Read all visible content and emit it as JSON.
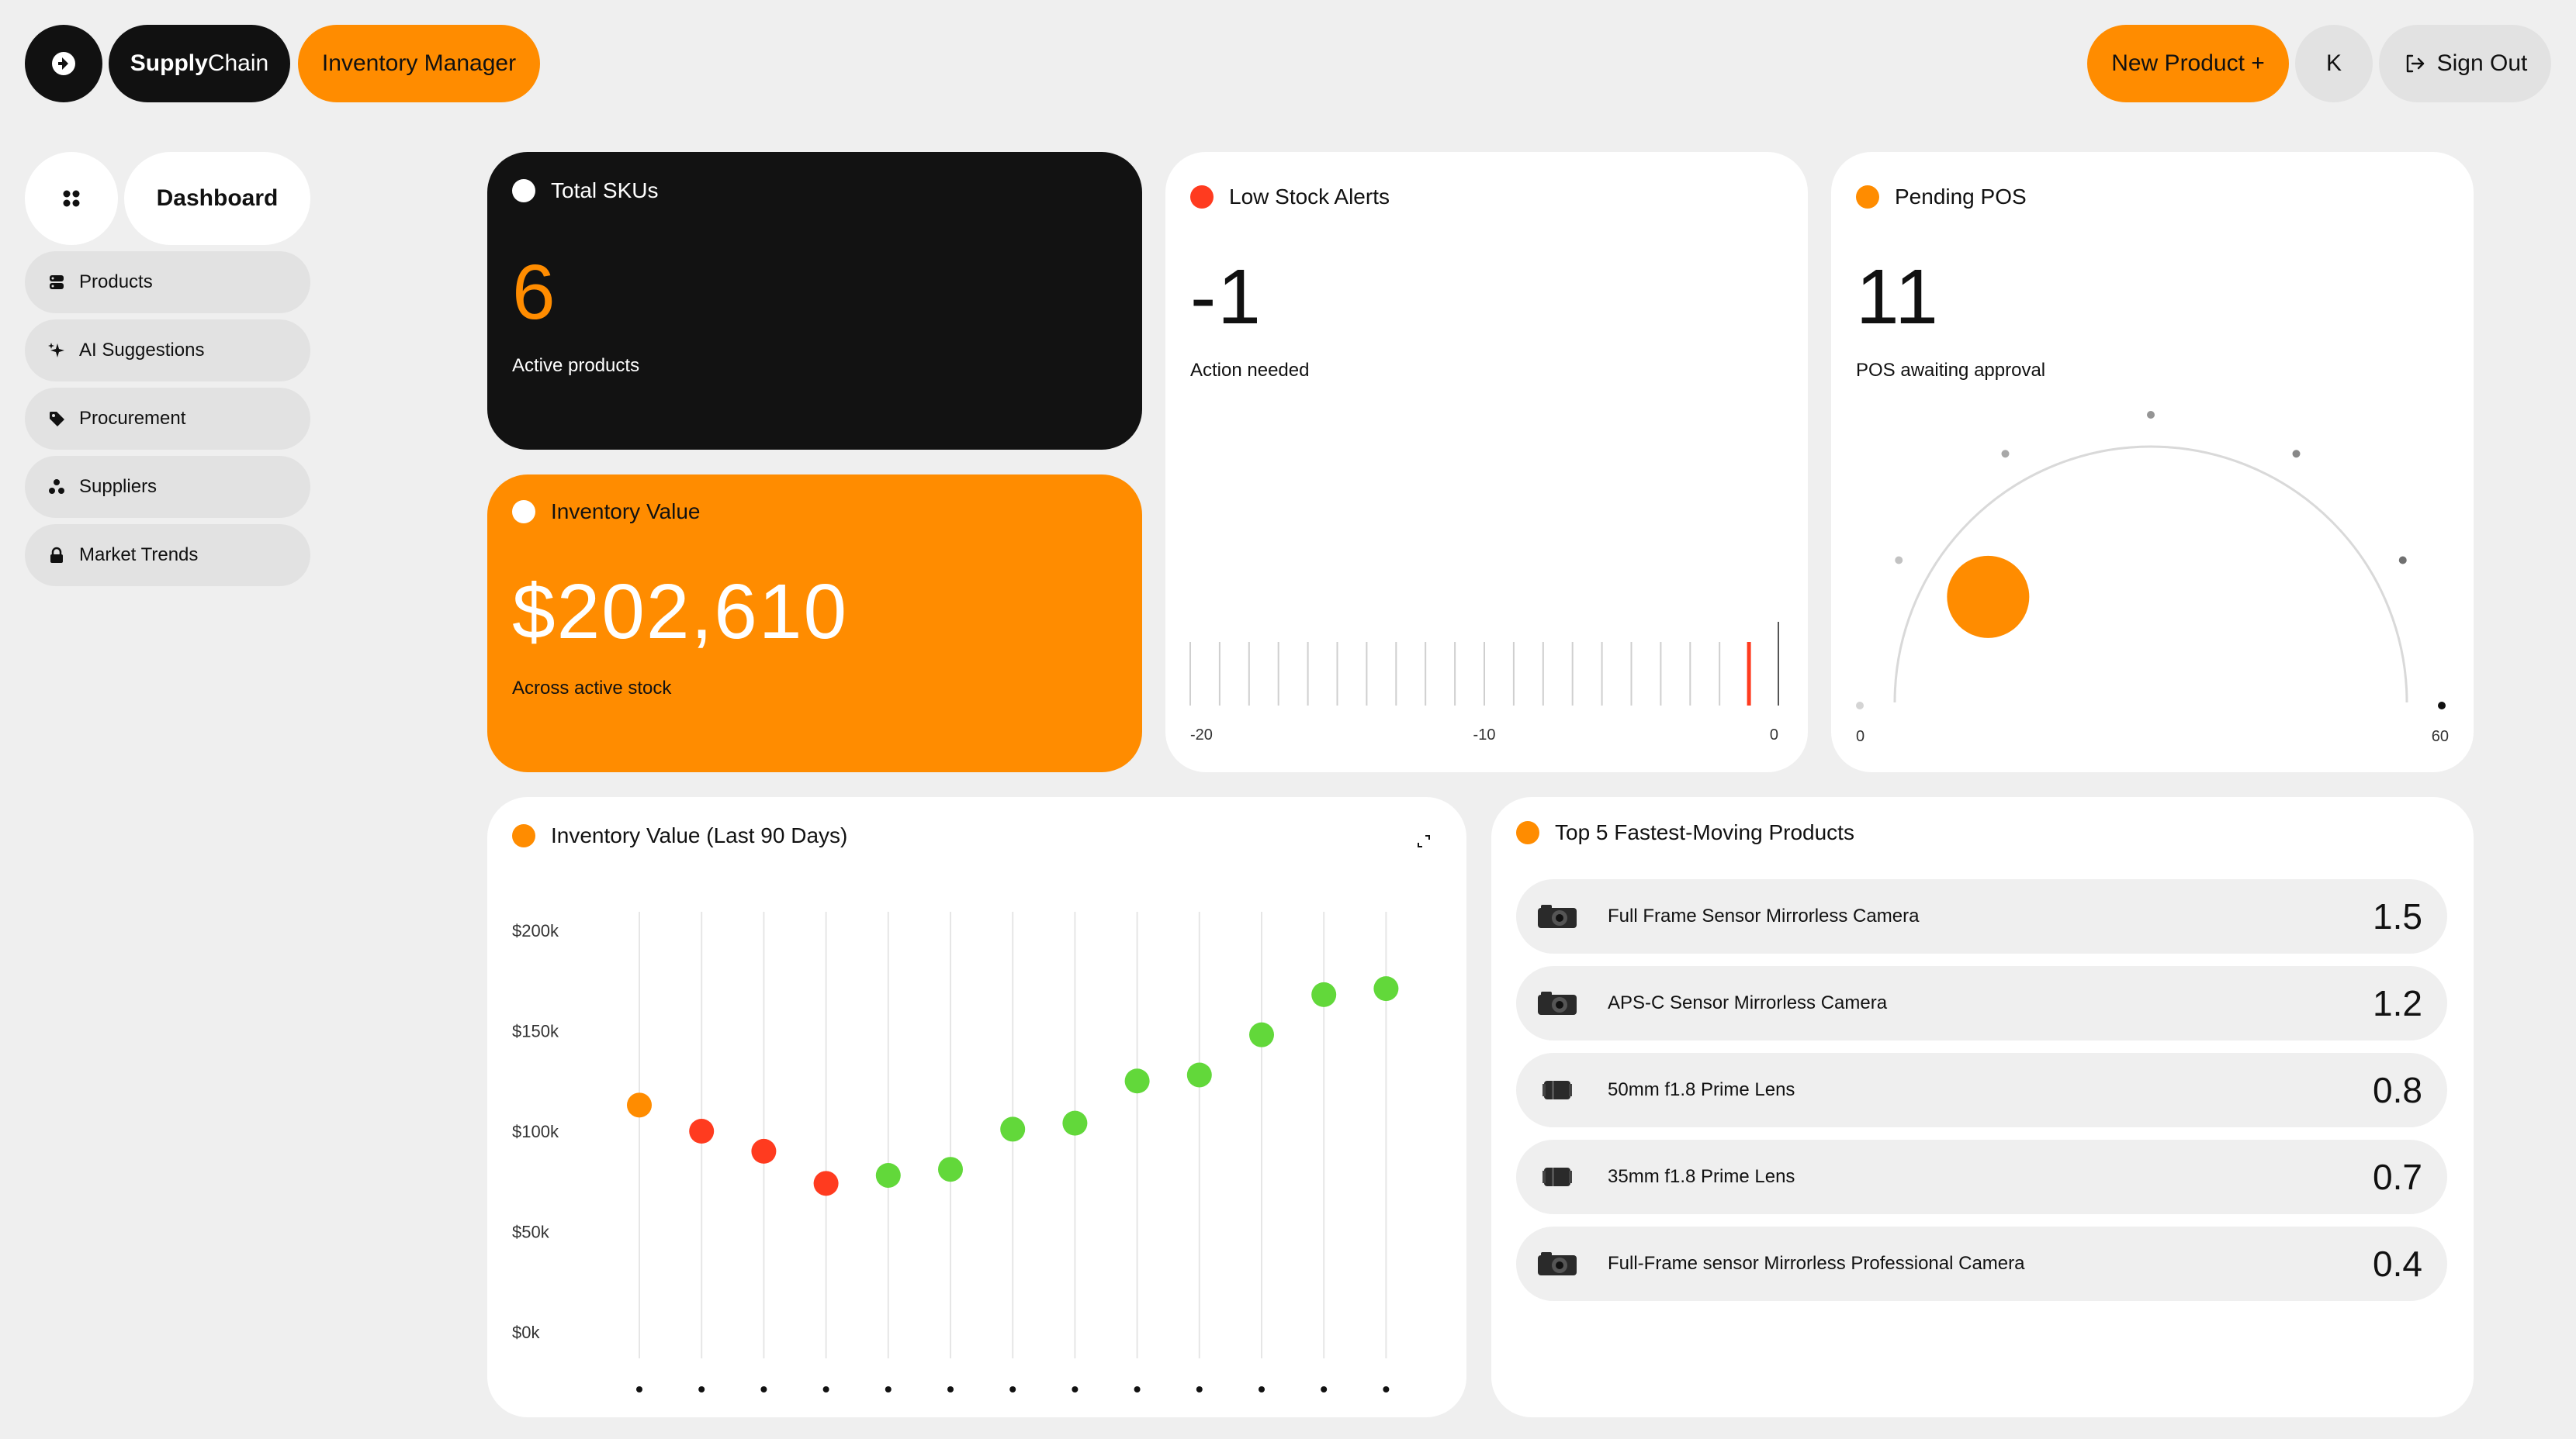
{
  "header": {
    "brand_bold": "Supply",
    "brand_regular": "Chain",
    "app_name": "Inventory Manager",
    "new_product_label": "New Product +",
    "avatar_initial": "K",
    "sign_out_label": "Sign Out"
  },
  "sidebar": {
    "dashboard_label": "Dashboard",
    "items": [
      {
        "label": "Products",
        "icon": "database-icon"
      },
      {
        "label": "AI Suggestions",
        "icon": "sparkle-icon"
      },
      {
        "label": "Procurement",
        "icon": "tag-icon"
      },
      {
        "label": "Suppliers",
        "icon": "people-icon"
      },
      {
        "label": "Market Trends",
        "icon": "lock-icon"
      }
    ]
  },
  "kpis": {
    "total_skus": {
      "title": "Total SKUs",
      "value": "6",
      "label": "Active products"
    },
    "inventory_value": {
      "title": "Inventory Value",
      "value": "$202,610",
      "label": "Across active stock"
    },
    "low_stock": {
      "title": "Low Stock Alerts",
      "value": "-1",
      "label": "Action needed",
      "scale_min": -20,
      "scale_max": 0,
      "current": -1,
      "tick_labels": [
        "-20",
        "-10",
        "0"
      ]
    },
    "pending_pos": {
      "title": "Pending POS",
      "value": "11",
      "label": "POS awaiting approval",
      "gauge_min": 0,
      "gauge_max": 60,
      "current": 11,
      "tick_labels": [
        "0",
        "60"
      ]
    }
  },
  "colors": {
    "accent": "#ff8c00",
    "alert": "#ff3b1f",
    "good": "#62d83a",
    "dark": "#121212"
  },
  "chart": {
    "title": "Inventory Value (Last 90 Days)",
    "expand_icon": "expand-icon"
  },
  "chart_data": {
    "type": "scatter",
    "title": "Inventory Value (Last 90 Days)",
    "xlabel": "",
    "ylabel": "",
    "ylim": [
      0,
      200000
    ],
    "y_tick_labels": [
      "$200k",
      "$150k",
      "$100k",
      "$50k",
      "$0k"
    ],
    "y_ticks": [
      200000,
      150000,
      100000,
      50000,
      0
    ],
    "grid": "vertical",
    "points": [
      {
        "y": 113000,
        "color": "#ff8c00"
      },
      {
        "y": 100000,
        "color": "#ff3b1f"
      },
      {
        "y": 90000,
        "color": "#ff3b1f"
      },
      {
        "y": 74000,
        "color": "#ff3b1f"
      },
      {
        "y": 78000,
        "color": "#62d83a"
      },
      {
        "y": 81000,
        "color": "#62d83a"
      },
      {
        "y": 101000,
        "color": "#62d83a"
      },
      {
        "y": 104000,
        "color": "#62d83a"
      },
      {
        "y": 125000,
        "color": "#62d83a"
      },
      {
        "y": 128000,
        "color": "#62d83a"
      },
      {
        "y": 148000,
        "color": "#62d83a"
      },
      {
        "y": 168000,
        "color": "#62d83a"
      },
      {
        "y": 171000,
        "color": "#62d83a"
      }
    ]
  },
  "top_products": {
    "title": "Top 5 Fastest-Moving Products",
    "items": [
      {
        "name": "Full Frame Sensor Mirrorless Camera",
        "value": "1.5",
        "icon": "camera-icon"
      },
      {
        "name": "APS-C Sensor Mirrorless Camera",
        "value": "1.2",
        "icon": "camera-icon"
      },
      {
        "name": "50mm f1.8 Prime Lens",
        "value": "0.8",
        "icon": "lens-icon"
      },
      {
        "name": "35mm f1.8 Prime Lens",
        "value": "0.7",
        "icon": "lens-icon"
      },
      {
        "name": "Full-Frame sensor Mirrorless Professional Camera",
        "value": "0.4",
        "icon": "camera-icon"
      }
    ]
  }
}
